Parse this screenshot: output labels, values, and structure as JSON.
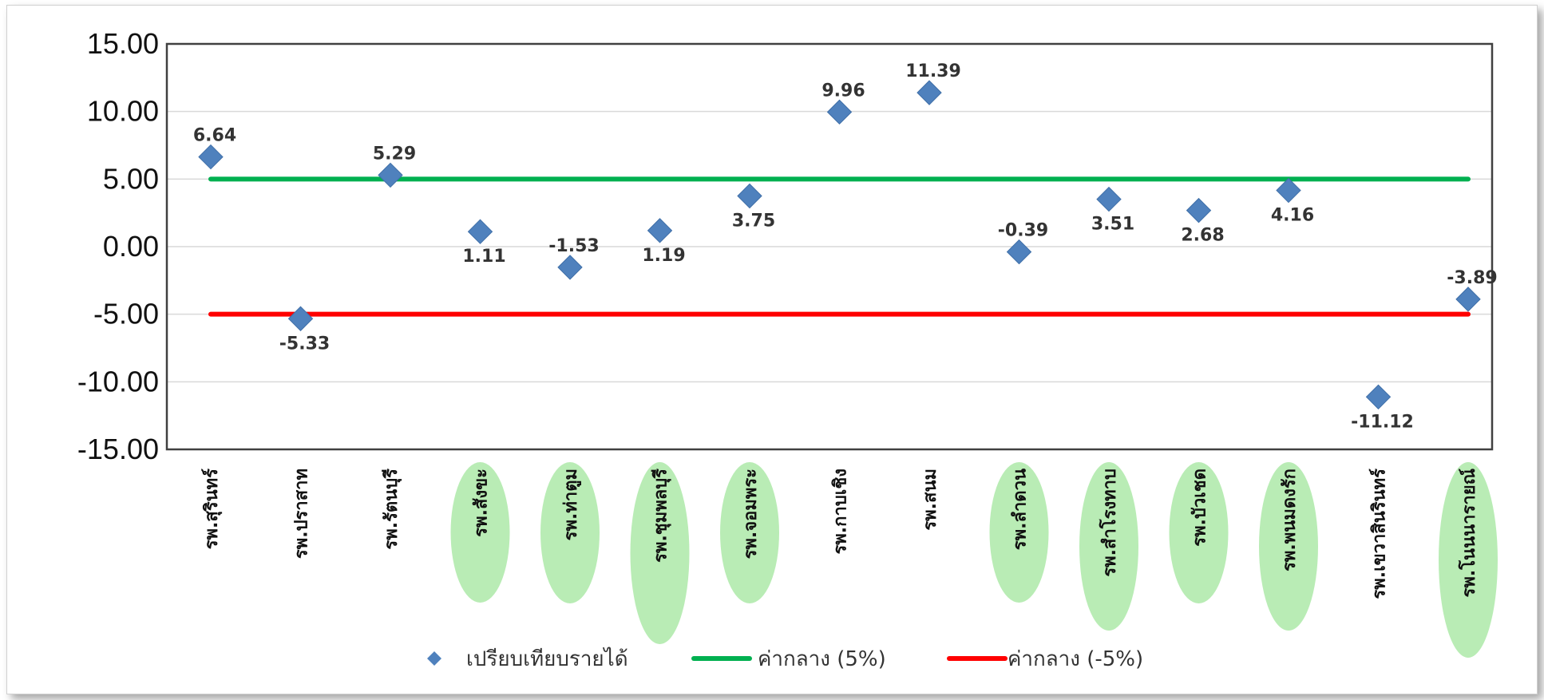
{
  "chart_data": {
    "type": "scatter",
    "categories": [
      "รพ.สุรินทร์",
      "รพ.ปราสาท",
      "รพ.รัตนบุรี",
      "รพ.สังขะ",
      "รพ.ท่าตูม",
      "รพ.ชุมพลบุรี",
      "รพ.จอมพระ",
      "รพ.กาบเชิง",
      "รพ.สนม",
      "รพ.ลำดวน",
      "รพ.สำโรงทาบ",
      "รพ.บัวเชด",
      "รพ.พนมดงรัก",
      "รพ.เขวาสินรินทร์",
      "รพ.โนนนารายณ์"
    ],
    "highlighted": [
      false,
      false,
      false,
      true,
      true,
      true,
      true,
      false,
      false,
      true,
      true,
      true,
      true,
      false,
      true
    ],
    "highlight_color": "#b9ecb5",
    "series": [
      {
        "name": "เปรียบเทียบรายได้",
        "kind": "marker",
        "color": "#4f81bd",
        "values": [
          6.64,
          -5.33,
          5.29,
          1.11,
          -1.53,
          1.19,
          3.75,
          9.96,
          11.39,
          -0.39,
          3.51,
          2.68,
          4.16,
          -11.12,
          -3.89
        ],
        "labels": [
          "6.64",
          "-5.33",
          "5.29",
          "1.11",
          "-1.53",
          "1.19",
          "3.75",
          "9.96",
          "11.39",
          "-0.39",
          "3.51",
          "2.68",
          "4.16",
          "-11.12",
          "-3.89"
        ],
        "label_pos": [
          "above",
          "below",
          "above",
          "below",
          "above",
          "below",
          "below",
          "above",
          "above",
          "above",
          "below",
          "below",
          "below",
          "below",
          "above"
        ]
      },
      {
        "name": "ค่ากลาง (5%)",
        "kind": "line",
        "color": "#00b050",
        "value": 5
      },
      {
        "name": "ค่ากลาง (-5%)",
        "kind": "line",
        "color": "#ff0000",
        "value": -5
      }
    ],
    "ylim": [
      -15,
      15
    ],
    "yticks": [
      15,
      10,
      5,
      0,
      -5,
      -10,
      -15
    ],
    "ytick_labels": [
      "15.00",
      "10.00",
      "5.00",
      "0.00",
      "-5.00",
      "-10.00",
      "-15.00"
    ],
    "grid": true,
    "legend": "bottom"
  }
}
